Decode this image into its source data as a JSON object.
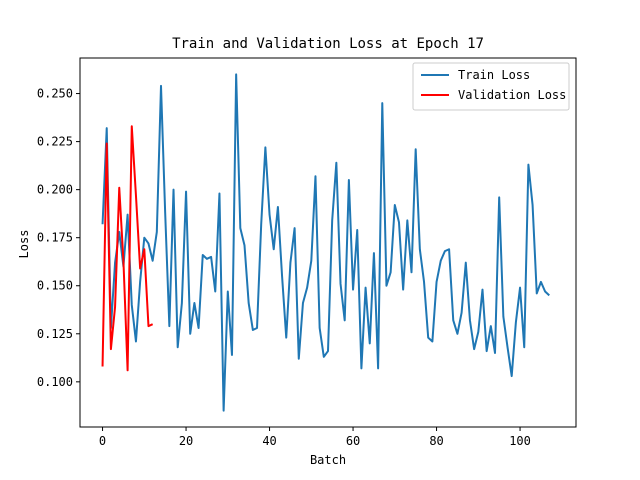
{
  "chart_data": {
    "type": "line",
    "title": "Train and Validation Loss at Epoch 17",
    "xlabel": "Batch",
    "ylabel": "Loss",
    "xlim": [
      -5.4,
      113.4
    ],
    "ylim": [
      0.0765,
      0.2685
    ],
    "x_ticks": [
      0,
      20,
      40,
      60,
      80,
      100
    ],
    "x_tick_labels": [
      "0",
      "20",
      "40",
      "60",
      "80",
      "100"
    ],
    "y_ticks": [
      0.1,
      0.125,
      0.15,
      0.175,
      0.2,
      0.225,
      0.25
    ],
    "y_tick_labels": [
      "0.100",
      "0.125",
      "0.150",
      "0.175",
      "0.200",
      "0.225",
      "0.250"
    ],
    "grid": false,
    "legend_position": "top-right",
    "series": [
      {
        "name": "Train Loss",
        "color": "#1f77b4",
        "x": [
          0,
          1,
          2,
          3,
          4,
          5,
          6,
          7,
          8,
          9,
          10,
          11,
          12,
          13,
          14,
          15,
          16,
          17,
          18,
          19,
          20,
          21,
          22,
          23,
          24,
          25,
          26,
          27,
          28,
          29,
          30,
          31,
          32,
          33,
          34,
          35,
          36,
          37,
          38,
          39,
          40,
          41,
          42,
          43,
          44,
          45,
          46,
          47,
          48,
          49,
          50,
          51,
          52,
          53,
          54,
          55,
          56,
          57,
          58,
          59,
          60,
          61,
          62,
          63,
          64,
          65,
          66,
          67,
          68,
          69,
          70,
          71,
          72,
          73,
          74,
          75,
          76,
          77,
          78,
          79,
          80,
          81,
          82,
          83,
          84,
          85,
          86,
          87,
          88,
          89,
          90,
          91,
          92,
          93,
          94,
          95,
          96,
          97,
          98,
          99,
          100,
          101,
          102,
          103,
          104,
          105,
          106,
          107
        ],
        "y": [
          0.182,
          0.232,
          0.128,
          0.162,
          0.178,
          0.16,
          0.187,
          0.14,
          0.121,
          0.152,
          0.175,
          0.172,
          0.163,
          0.178,
          0.254,
          0.188,
          0.129,
          0.2,
          0.118,
          0.141,
          0.199,
          0.125,
          0.141,
          0.128,
          0.166,
          0.164,
          0.165,
          0.147,
          0.198,
          0.085,
          0.147,
          0.114,
          0.26,
          0.18,
          0.171,
          0.141,
          0.127,
          0.128,
          0.182,
          0.222,
          0.187,
          0.169,
          0.191,
          0.155,
          0.123,
          0.162,
          0.18,
          0.112,
          0.141,
          0.149,
          0.163,
          0.207,
          0.128,
          0.113,
          0.116,
          0.184,
          0.214,
          0.151,
          0.132,
          0.205,
          0.148,
          0.179,
          0.107,
          0.149,
          0.12,
          0.167,
          0.107,
          0.245,
          0.15,
          0.157,
          0.192,
          0.183,
          0.148,
          0.184,
          0.157,
          0.221,
          0.169,
          0.152,
          0.123,
          0.121,
          0.152,
          0.163,
          0.168,
          0.169,
          0.132,
          0.125,
          0.136,
          0.162,
          0.132,
          0.117,
          0.126,
          0.148,
          0.116,
          0.129,
          0.115,
          0.196,
          0.134,
          0.118,
          0.103,
          0.131,
          0.149,
          0.118,
          0.213,
          0.192,
          0.146,
          0.152,
          0.147,
          0.145
        ]
      },
      {
        "name": "Validation Loss",
        "color": "#ff0000",
        "x": [
          0,
          1,
          2,
          3,
          4,
          5,
          6,
          7,
          8,
          9,
          10,
          11,
          12
        ],
        "y": [
          0.108,
          0.224,
          0.117,
          0.139,
          0.201,
          0.163,
          0.106,
          0.233,
          0.197,
          0.159,
          0.169,
          0.129,
          0.13
        ]
      }
    ]
  }
}
